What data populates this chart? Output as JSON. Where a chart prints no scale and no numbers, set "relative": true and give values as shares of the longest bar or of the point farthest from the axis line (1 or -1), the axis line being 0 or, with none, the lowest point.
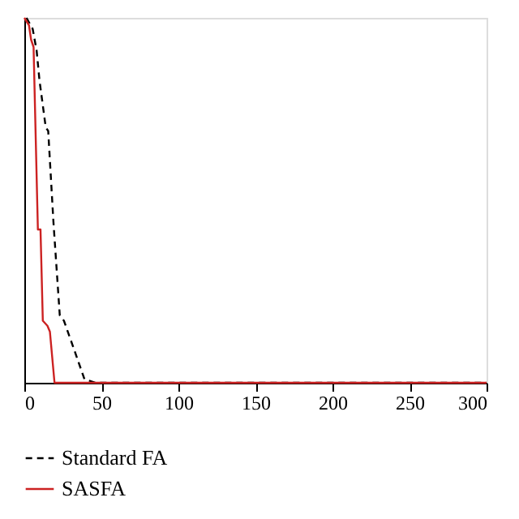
{
  "chart_data": {
    "type": "line",
    "relative": true,
    "xlim": [
      0,
      300
    ],
    "xticks": [
      0,
      50,
      100,
      150,
      200,
      250,
      300
    ],
    "legend": "bottom",
    "grid": false,
    "series": [
      {
        "name": "Standard FA",
        "color": "#000000",
        "line_style": "dashed",
        "x": [
          1.4,
          5.4,
          8,
          9.8,
          13.9,
          15.5,
          18.9,
          23,
          25.7,
          32.4,
          39,
          46,
          300
        ],
        "values": [
          1,
          0.97,
          0.91,
          0.83,
          0.7,
          0.69,
          0.44,
          0.185,
          0.17,
          0.09,
          0.01,
          0,
          0
        ]
      },
      {
        "name": "SASFA",
        "color": "#cc2222",
        "line_style": "solid",
        "x": [
          0,
          3,
          4.4,
          6,
          8.8,
          10.5,
          12,
          15,
          16.6,
          19.6,
          300
        ],
        "values": [
          1,
          0.98,
          0.94,
          0.92,
          0.42,
          0.42,
          0.17,
          0.156,
          0.14,
          0,
          0
        ]
      }
    ]
  }
}
